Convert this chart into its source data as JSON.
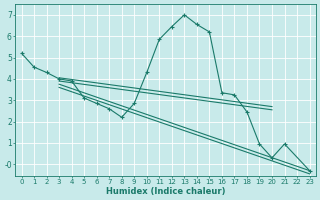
{
  "xlabel": "Humidex (Indice chaleur)",
  "bg_color": "#c8eaea",
  "grid_color": "#ffffff",
  "line_color": "#1a7a6a",
  "xlim": [
    -0.5,
    23.5
  ],
  "ylim": [
    -0.55,
    7.5
  ],
  "xticks": [
    0,
    1,
    2,
    3,
    4,
    5,
    6,
    7,
    8,
    9,
    10,
    11,
    12,
    13,
    14,
    15,
    16,
    17,
    18,
    19,
    20,
    21,
    22,
    23
  ],
  "yticks": [
    0,
    1,
    2,
    3,
    4,
    5,
    6,
    7
  ],
  "ytick_labels": [
    "-0",
    "1",
    "2",
    "3",
    "4",
    "5",
    "6",
    "7"
  ],
  "main_x": [
    0,
    1,
    2,
    3,
    4,
    5,
    6,
    7,
    8,
    9,
    10,
    11,
    12,
    13,
    14,
    15,
    16,
    17,
    18,
    19,
    20,
    21,
    23
  ],
  "main_y": [
    5.2,
    4.55,
    4.3,
    4.0,
    3.9,
    3.1,
    2.85,
    2.6,
    2.2,
    2.85,
    4.3,
    5.85,
    6.45,
    7.0,
    6.55,
    6.2,
    3.35,
    3.25,
    2.45,
    0.95,
    0.3,
    0.95,
    -0.3
  ],
  "reg_lines": [
    {
      "x0": 3.0,
      "y0": 4.05,
      "x1": 20.0,
      "y1": 2.7
    },
    {
      "x0": 3.0,
      "y0": 3.9,
      "x1": 20.0,
      "y1": 2.55
    },
    {
      "x0": 3.0,
      "y0": 3.75,
      "x1": 23.0,
      "y1": -0.3
    },
    {
      "x0": 3.0,
      "y0": 3.6,
      "x1": 23.0,
      "y1": -0.45
    }
  ]
}
